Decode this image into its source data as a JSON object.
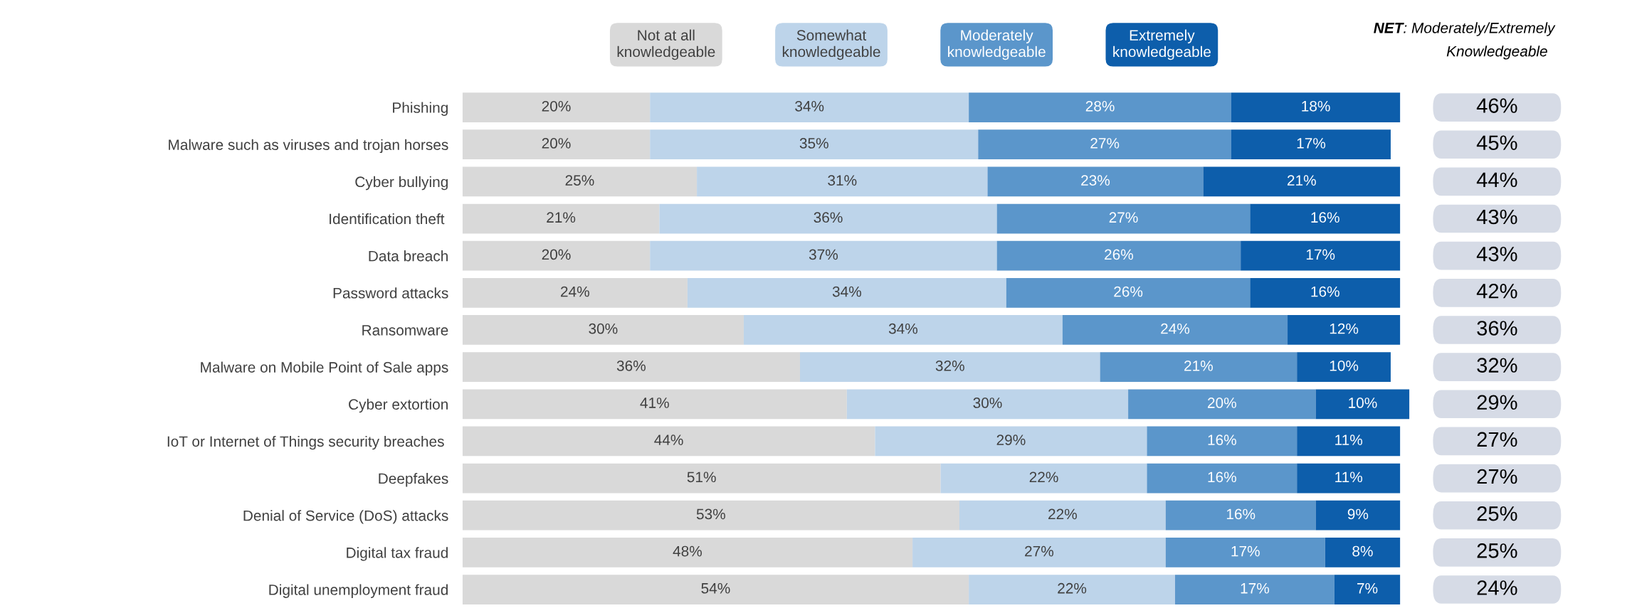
{
  "chart_data": [
    {
      "type": "bar",
      "orientation": "horizontal",
      "stacked": true,
      "legend": "top",
      "grid": false,
      "categories": [
        "Phishing",
        "Malware such as viruses and trojan horses",
        "Cyber bullying",
        "Identification theft ",
        "Data breach",
        "Password attacks",
        "Ransomware",
        "Malware on Mobile Point of Sale apps",
        "Cyber extortion",
        "IoT or Internet of Things security breaches ",
        "Deepfakes",
        "Denial of Service (DoS) attacks",
        "Digital tax fraud",
        "Digital unemployment fraud"
      ],
      "series": [
        {
          "name": "Not at all\nknowledgeable",
          "color": "#d9d9d9",
          "values": [
            20,
            20,
            25,
            21,
            20,
            24,
            30,
            36,
            41,
            44,
            51,
            53,
            48,
            54
          ],
          "value_labels": [
            "20%",
            "20%",
            "25%",
            "21%",
            "20%",
            "24%",
            "30%",
            "36%",
            "41%",
            "44%",
            "51%",
            "53%",
            "48%",
            "54%"
          ]
        },
        {
          "name": "Somewhat\nknowledgeable",
          "color": "#bdd4ea",
          "values": [
            34,
            35,
            31,
            36,
            37,
            34,
            34,
            32,
            30,
            29,
            22,
            22,
            27,
            22
          ],
          "value_labels": [
            "34%",
            "35%",
            "31%",
            "36%",
            "37%",
            "34%",
            "34%",
            "32%",
            "30%",
            "29%",
            "22%",
            "22%",
            "27%",
            "22%"
          ]
        },
        {
          "name": "Moderately\nknowledgeable",
          "color": "#5b96cb",
          "values": [
            28,
            27,
            23,
            27,
            26,
            26,
            24,
            21,
            20,
            16,
            16,
            16,
            17,
            17
          ],
          "value_labels": [
            "28%",
            "27%",
            "23%",
            "27%",
            "26%",
            "26%",
            "24%",
            "21%",
            "20%",
            "16%",
            "16%",
            "16%",
            "17%",
            "17%"
          ]
        },
        {
          "name": "Extremely\nknowledgeable",
          "color": "#0d5eab",
          "values": [
            18,
            17,
            21,
            16,
            17,
            16,
            12,
            10,
            10,
            11,
            11,
            9,
            8,
            7
          ],
          "value_labels": [
            "18%",
            "17%",
            "21%",
            "16%",
            "17%",
            "16%",
            "12%",
            "10%",
            "10%",
            "11%",
            "11%",
            "9%",
            "8%",
            "7%"
          ]
        }
      ]
    },
    {
      "type": "other",
      "title": "NET: Moderately/Extremely\nKnowledgeable",
      "color": "#d6dbe6",
      "annotations": [
        "46%",
        "45%",
        "44%",
        "43%",
        "43%",
        "42%",
        "36%",
        "32%",
        "29%",
        "27%",
        "27%",
        "25%",
        "25%",
        "24%"
      ]
    }
  ]
}
